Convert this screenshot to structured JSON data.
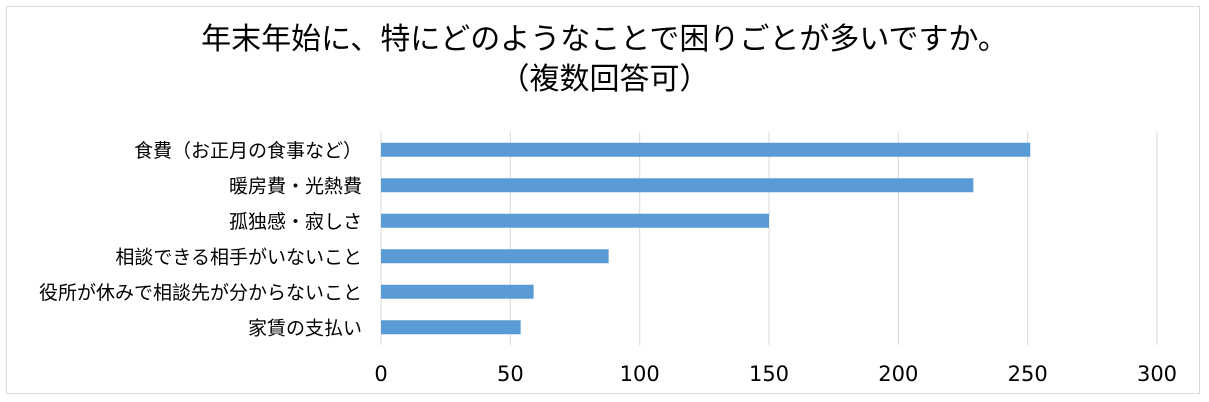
{
  "chart_data": {
    "type": "bar",
    "orientation": "horizontal",
    "title_line1": "年末年始に、特にどのようなことで困りごとが多いですか。",
    "title_line2": "（複数回答可）",
    "categories": [
      "食費（お正月の食事など）",
      "暖房費・光熱費",
      "孤独感・寂しさ",
      "相談できる相手がいないこと",
      "役所が休みで相談先が分からないこと",
      "家賃の支払い"
    ],
    "values": [
      251,
      229,
      150,
      88,
      59,
      54
    ],
    "xlim": [
      0,
      300
    ],
    "xticks": [
      0,
      50,
      100,
      150,
      200,
      250,
      300
    ],
    "grid": "vertical",
    "legend": "none",
    "bar_color": "#5b9bd5",
    "grid_color": "#d9d9d9"
  }
}
